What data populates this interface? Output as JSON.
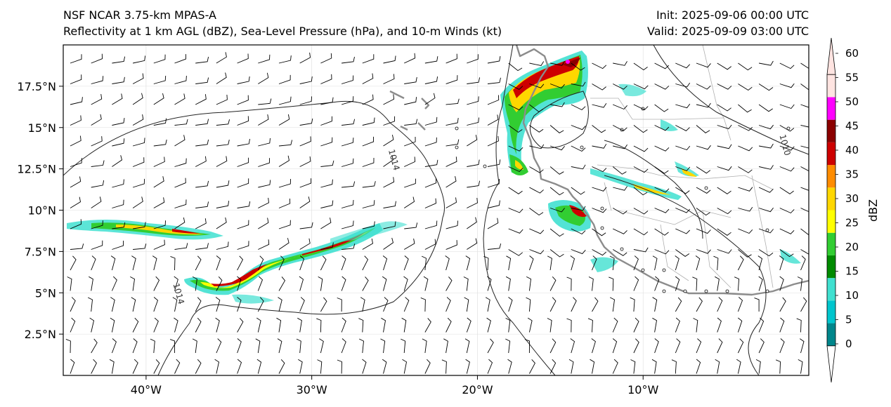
{
  "titles": {
    "left_line1": "NSF NCAR 3.75-km MPAS-A",
    "left_line2": "Reflectivity at 1 km AGL (dBZ), Sea-Level Pressure (hPa), and 10-m Winds (kt)",
    "right_line1": "Init: 2025-09-06 00:00 UTC",
    "right_line2": "Valid: 2025-09-09 03:00 UTC"
  },
  "map": {
    "lon_range": [
      -45,
      0
    ],
    "lat_range": [
      0,
      20
    ],
    "lon_ticks": [
      {
        "value": -40,
        "label": "40°W"
      },
      {
        "value": -30,
        "label": "30°W"
      },
      {
        "value": -20,
        "label": "20°W"
      },
      {
        "value": -10,
        "label": "10°W"
      }
    ],
    "lat_ticks": [
      {
        "value": 2.5,
        "label": "2.5°N"
      },
      {
        "value": 5,
        "label": "5°N"
      },
      {
        "value": 7.5,
        "label": "7.5°N"
      },
      {
        "value": 10,
        "label": "10°N"
      },
      {
        "value": 12.5,
        "label": "12.5°N"
      },
      {
        "value": 15,
        "label": "15°N"
      },
      {
        "value": 17.5,
        "label": "17.5°N"
      }
    ],
    "isobar_labels": [
      {
        "text": "1014",
        "lon": -25.2,
        "lat": 13.0
      },
      {
        "text": "1014",
        "lon": -38.2,
        "lat": 4.9
      },
      {
        "text": "1010",
        "lon": -1.6,
        "lat": 13.9
      }
    ]
  },
  "colorbar": {
    "label": "dBZ",
    "levels": [
      0,
      5,
      10,
      15,
      20,
      25,
      30,
      35,
      40,
      45,
      50,
      55,
      60
    ],
    "tick_labels": [
      "0",
      "5",
      "10",
      "15",
      "20",
      "25",
      "30",
      "35",
      "40",
      "45",
      "50",
      "55",
      "60"
    ],
    "colors": [
      "#00868b",
      "#00c5cd",
      "#40e0d0",
      "#008b00",
      "#32cd32",
      "#ffff00",
      "#ffd700",
      "#ff8c00",
      "#cd0000",
      "#8b0000",
      "#ff00ff",
      "#ffe4e1"
    ]
  },
  "colors": {
    "isobar": "#222222",
    "coast": "#8c8c8c",
    "border": "#b0b0b0",
    "grid": "#dddddd",
    "barb": "#000000"
  }
}
